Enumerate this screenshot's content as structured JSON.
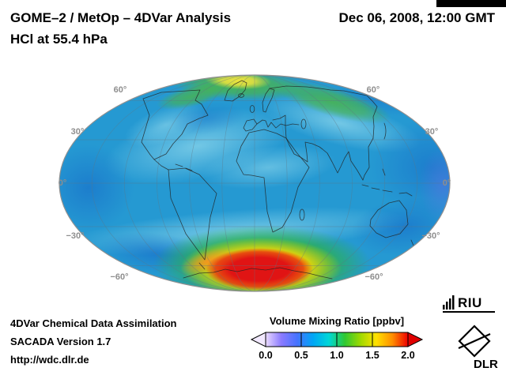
{
  "header": {
    "title_line1": "GOME–2 / MetOp – 4DVar Analysis",
    "title_line2": "HCl at 55.4 hPa",
    "datetime": "Dec 06, 2008, 12:00 GMT"
  },
  "map": {
    "base_color": "#2599d2",
    "lat_labels": {
      "left": [
        "60°",
        "30°",
        "0°",
        "−30°",
        "−60°"
      ],
      "right": [
        "60°",
        "30°",
        "0°",
        "−30°",
        "−60°"
      ]
    }
  },
  "colorbar": {
    "title": "Volume Mixing Ratio [ppbv]",
    "tick_labels": [
      "0.0",
      "0.5",
      "1.0",
      "1.5",
      "2.0"
    ],
    "under_arrow_color": "#f2e9ff",
    "over_arrow_color": "#e00000"
  },
  "footer": {
    "line1": "4DVar Chemical Data Assimilation",
    "line2": "SACADA Version 1.7",
    "line3": "http://wdc.dlr.de"
  },
  "logos": {
    "riu_text": "RIU",
    "dlr_text": "DLR"
  },
  "chart_data": {
    "type": "heatmap",
    "title": "GOME–2 / MetOp – 4DVar Analysis",
    "subtitle": "HCl at 55.4 hPa",
    "timestamp": "Dec 06, 2008, 12:00 GMT",
    "projection": "Mollweide global",
    "variable": "HCl volume mixing ratio",
    "units": "ppbv",
    "colorbar": {
      "label": "Volume Mixing Ratio [ppbv]",
      "range": [
        0.0,
        2.0
      ],
      "ticks": [
        0.0,
        0.5,
        1.0,
        1.5,
        2.0
      ],
      "open_ended_arrows": true,
      "scale_colors": [
        "#ead9ff",
        "#8a7aff",
        "#4673ff",
        "#00a6f5",
        "#00d7d7",
        "#2fc832",
        "#9fd900",
        "#ffe100",
        "#ff9000",
        "#ee0000"
      ]
    },
    "graticule_parallels_deg": [
      60,
      30,
      0,
      -30,
      -60
    ],
    "graticule_meridian_spacing_deg": 30,
    "notable_features": [
      {
        "region": "Antarctic polar vortex (~55–80°S, ~40°W–40°E)",
        "approx_value_ppbv": 2.0,
        "appearance": "red maximum ringed by yellow, orange and green"
      },
      {
        "region": "High northern latitudes (Greenland–Scandinavia–Siberia arc)",
        "approx_value_ppbv": 1.2,
        "appearance": "green band with yellow core near Greenland"
      },
      {
        "region": "Tropics and mid-latitudes background",
        "approx_value_ppbv": 0.6,
        "appearance": "cyan-blue field with lighter swirls"
      },
      {
        "region": "Eastern Pacific and map edge regions",
        "approx_value_ppbv": 0.4,
        "appearance": "darker blue patches"
      }
    ]
  }
}
